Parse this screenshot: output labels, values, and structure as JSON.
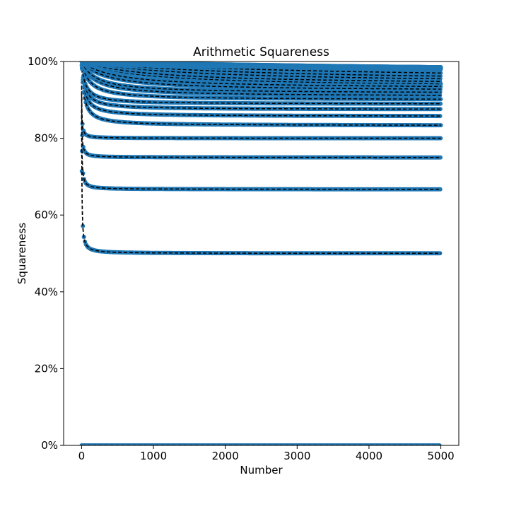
{
  "chart_data": {
    "type": "scatter",
    "title": "Arithmetic Squareness",
    "xlabel": "Number",
    "ylabel": "Squareness",
    "xlim": [
      -250,
      5250
    ],
    "ylim": [
      0,
      1
    ],
    "x_ticks": [
      0,
      1000,
      2000,
      3000,
      4000,
      5000
    ],
    "x_tick_labels": [
      "0",
      "1000",
      "2000",
      "3000",
      "4000",
      "5000"
    ],
    "y_ticks": [
      0,
      0.2,
      0.4,
      0.6,
      0.8,
      1.0
    ],
    "y_tick_labels": [
      "0%",
      "20%",
      "40%",
      "60%",
      "80%",
      "100%"
    ],
    "grid": false,
    "legend": "none",
    "marker_color": "#1f77b4",
    "curve_color": "#000000",
    "x_range": [
      1,
      5000
    ],
    "series": [
      {
        "limit": 0.0,
        "value_at_5000": 0.0
      },
      {
        "limit": 0.5,
        "value_at_5000": 0.5
      },
      {
        "limit": 0.667,
        "value_at_5000": 0.667
      },
      {
        "limit": 0.75,
        "value_at_5000": 0.75
      },
      {
        "limit": 0.8,
        "value_at_5000": 0.8
      },
      {
        "limit": 0.833,
        "value_at_5000": 0.834
      },
      {
        "limit": 0.857,
        "value_at_5000": 0.858
      },
      {
        "limit": 0.875,
        "value_at_5000": 0.876
      },
      {
        "limit": 0.889,
        "value_at_5000": 0.89
      },
      {
        "limit": 0.9,
        "value_at_5000": 0.902
      },
      {
        "limit": 0.909,
        "value_at_5000": 0.912
      },
      {
        "limit": 0.917,
        "value_at_5000": 0.92
      },
      {
        "limit": 0.923,
        "value_at_5000": 0.928
      },
      {
        "limit": 0.929,
        "value_at_5000": 0.935
      },
      {
        "limit": 0.933,
        "value_at_5000": 0.942
      },
      {
        "limit": 0.938,
        "value_at_5000": 0.948
      },
      {
        "limit": 0.941,
        "value_at_5000": 0.955
      },
      {
        "limit": 0.944,
        "value_at_5000": 0.962
      },
      {
        "limit": 0.947,
        "value_at_5000": 0.97
      },
      {
        "limit": 0.95,
        "value_at_5000": 0.98
      }
    ]
  }
}
